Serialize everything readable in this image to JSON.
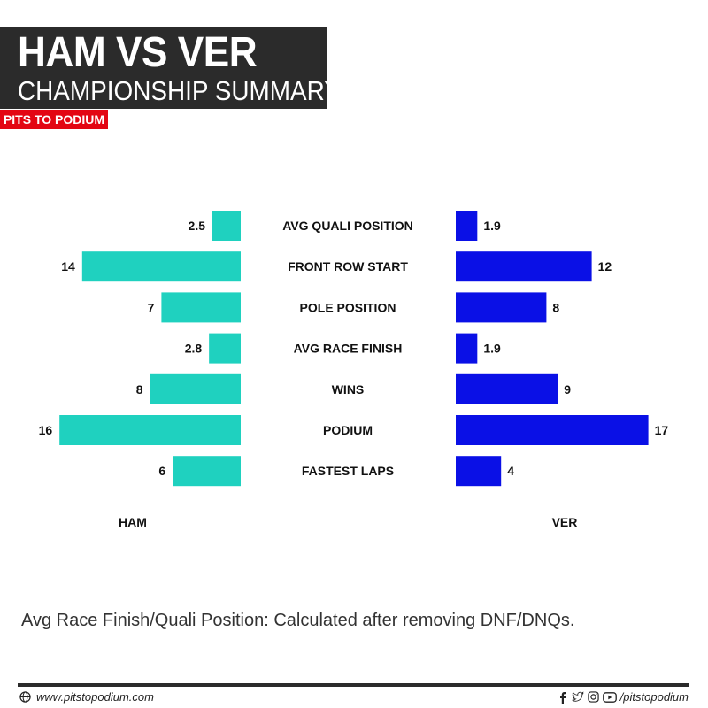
{
  "header": {
    "title": "HAM VS VER",
    "subtitle": "CHAMPIONSHIP SUMMARY",
    "brand": "PITS TO PODIUM"
  },
  "colors": {
    "ham": "#1fd1bf",
    "ver": "#0a10e6",
    "title_bg": "#2b2b2b",
    "brand_bg": "#e30613"
  },
  "chart_data": {
    "type": "bar",
    "orientation": "horizontal-butterfly",
    "categories": [
      "AVG QUALI POSITION",
      "FRONT ROW START",
      "POLE POSITION",
      "AVG RACE FINISH",
      "WINS",
      "PODIUM",
      "FASTEST LAPS"
    ],
    "series": [
      {
        "name": "HAM",
        "values": [
          2.5,
          14,
          7,
          2.8,
          8,
          16,
          6
        ],
        "labels": [
          "2.5",
          "14",
          "7",
          "2.8",
          "8",
          "16",
          "6"
        ]
      },
      {
        "name": "VER",
        "values": [
          1.9,
          12,
          8,
          1.9,
          9,
          17,
          4
        ],
        "labels": [
          "1.9",
          "12",
          "8",
          "1.9",
          "9",
          "17",
          "4"
        ]
      }
    ],
    "xlim": [
      0,
      17
    ]
  },
  "note": "Avg Race Finish/Quali Position: Calculated after removing DNF/DNQs.",
  "footer": {
    "website_icon": "globe-icon",
    "website": "www.pitstopodium.com",
    "social_icons": [
      "facebook-icon",
      "twitter-icon",
      "instagram-icon",
      "youtube-icon"
    ],
    "handle": "/pitstopodium"
  }
}
